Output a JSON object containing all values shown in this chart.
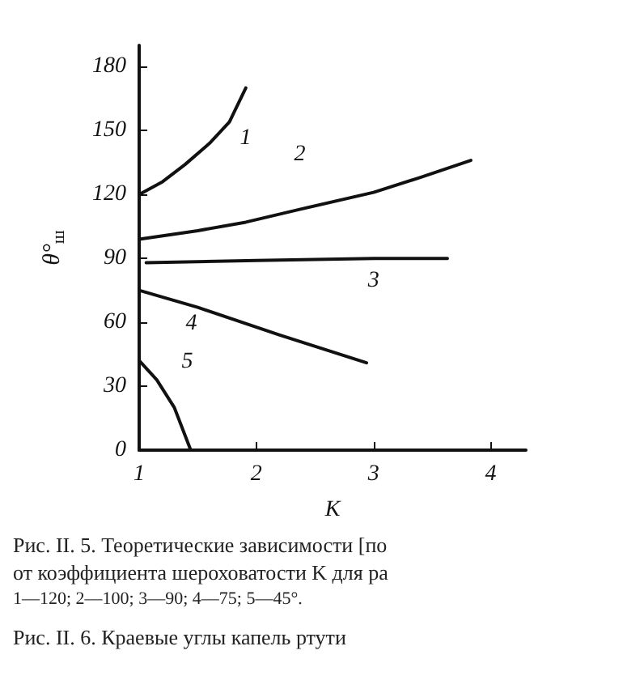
{
  "chart_data": {
    "type": "line",
    "xlabel": "K",
    "ylabel": "θ°$_{ш}$",
    "xlim": [
      1,
      4.3
    ],
    "ylim": [
      0,
      190
    ],
    "xticks": [
      1,
      2,
      3,
      4
    ],
    "yticks": [
      0,
      30,
      60,
      90,
      120,
      150,
      180
    ],
    "grid": false,
    "legend": false,
    "marker": "none",
    "line_style": "solid",
    "series": [
      {
        "name": "1",
        "color": "#111111",
        "x": [
          1,
          1.2,
          1.39,
          1.6,
          1.77,
          1.91
        ],
        "values": [
          120,
          126,
          134,
          144,
          154,
          170
        ]
      },
      {
        "name": "2",
        "color": "#111111",
        "x": [
          1,
          1.5,
          1.91,
          2.37,
          3,
          3.4,
          3.83
        ],
        "values": [
          99,
          103,
          107,
          113,
          121,
          128,
          136
        ]
      },
      {
        "name": "3",
        "color": "#111111",
        "x": [
          1.06,
          2,
          3,
          3.63
        ],
        "values": [
          88,
          89,
          90,
          90
        ]
      },
      {
        "name": "4",
        "color": "#111111",
        "x": [
          1,
          1.5,
          2.2,
          2.94
        ],
        "values": [
          75,
          67,
          54,
          41
        ]
      },
      {
        "name": "5",
        "color": "#111111",
        "x": [
          1,
          1.15,
          1.3,
          1.44
        ],
        "values": [
          42,
          33,
          20,
          0
        ]
      }
    ],
    "annotations": [
      "Рис. II. 5. Теоретические зависимости [по",
      "от коэффициента шероховатости K для ра",
      "1—120; 2—100; 3—90; 4—75; 5—45°.",
      "Рис. II. 6. Краевые углы капель ртути"
    ]
  }
}
